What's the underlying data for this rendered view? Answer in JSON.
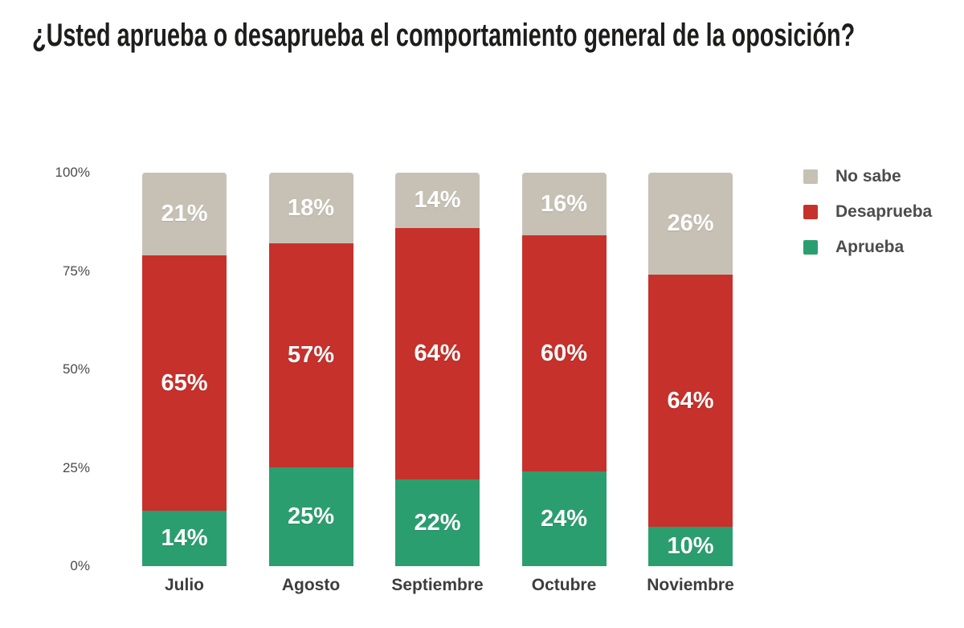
{
  "title": "¿Usted aprueba o desaprueba el comportamiento general de la oposición?",
  "chart_data": {
    "type": "bar",
    "stacked": true,
    "title": "¿Usted aprueba o desaprueba el comportamiento general de la oposición?",
    "categories": [
      "Julio",
      "Agosto",
      "Septiembre",
      "Octubre",
      "Noviembre"
    ],
    "series": [
      {
        "name": "Aprueba",
        "color": "#2b9e6f",
        "values": [
          14,
          25,
          22,
          24,
          10
        ]
      },
      {
        "name": "Desaprueba",
        "color": "#c6312b",
        "values": [
          65,
          57,
          64,
          60,
          64
        ]
      },
      {
        "name": "No sabe",
        "color": "#c7c1b5",
        "values": [
          21,
          18,
          14,
          16,
          26
        ]
      }
    ],
    "value_label_suffix": "%",
    "xlabel": "",
    "ylabel": "",
    "ylim": [
      0,
      100
    ],
    "y_ticks": [
      "100%",
      "75%",
      "50%",
      "25%",
      "0%"
    ],
    "grid": false,
    "legend_position": "right",
    "legend_order": [
      "No sabe",
      "Desaprueba",
      "Aprueba"
    ]
  },
  "legend": {
    "items": [
      {
        "label": "No sabe",
        "color": "#c7c1b5"
      },
      {
        "label": "Desaprueba",
        "color": "#c6312b"
      },
      {
        "label": "Aprueba",
        "color": "#2b9e6f"
      }
    ]
  },
  "colors": {
    "background": "#ffffff",
    "title_text": "#1d1d1b",
    "axis_text": "#4b4b4b",
    "category_text": "#3d3d3d",
    "legend_text": "#4c4c4c",
    "segment_label_text": "#ffffff"
  }
}
